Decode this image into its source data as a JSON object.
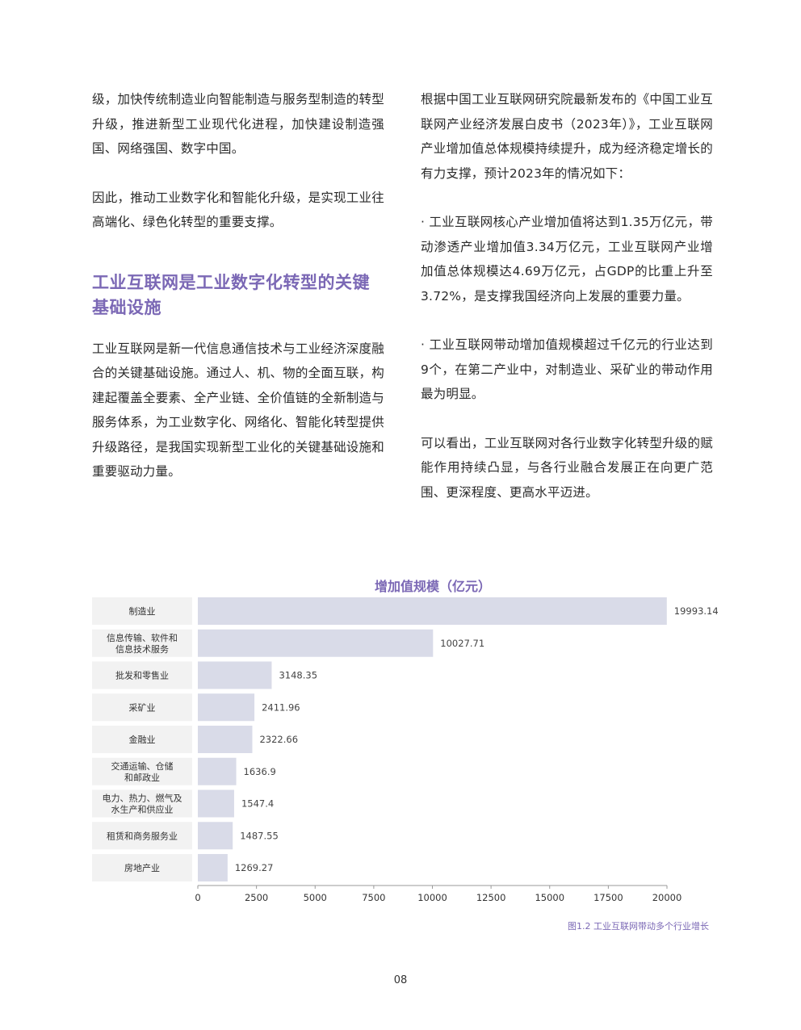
{
  "left_column": {
    "para1": "级，加快传统制造业向智能制造与服务型制造的转型升级，推进新型工业现代化进程，加快建设制造强国、网络强国、数字中国。",
    "para2": "因此，推动工业数字化和智能化升级，是实现工业往高端化、绿色化转型的重要支撑。",
    "heading": "工业互联网是工业数字化转型的关键基础设施",
    "para3": "工业互联网是新一代信息通信技术与工业经济深度融合的关键基础设施。通过人、机、物的全面互联，构建起覆盖全要素、全产业链、全价值链的全新制造与服务体系，为工业数字化、网络化、智能化转型提供升级路径，是我国实现新型工业化的关键基础设施和重要驱动力量。"
  },
  "right_column": {
    "para1": "根据中国工业互联网研究院最新发布的《中国工业互联网产业经济发展白皮书（2023年）》，工业互联网产业增加值总体规模持续提升，成为经济稳定增长的有力支撑，预计2023年的情况如下：",
    "bullet1": "· 工业互联网核心产业增加值将达到1.35万亿元，带动渗透产业增加值3.34万亿元，工业互联网产业增加值总体规模达4.69万亿元，占GDP的比重上升至3.72%，是支撑我国经济向上发展的重要力量。",
    "bullet2": "· 工业互联网带动增加值规模超过千亿元的行业达到9个，在第二产业中，对制造业、采矿业的带动作用最为明显。",
    "para2": "可以看出，工业互联网对各行业数字化转型升级的赋能作用持续凸显，与各行业融合发展正在向更广范围、更深程度、更高水平迈进。"
  },
  "chart_data": {
    "type": "bar",
    "orientation": "horizontal",
    "title": "增加值规模（亿元）",
    "categories": [
      [
        "制造业"
      ],
      [
        "信息传输、软件和",
        "信息技术服务"
      ],
      [
        "批发和零售业"
      ],
      [
        "采矿业"
      ],
      [
        "金融业"
      ],
      [
        "交通运输、仓储",
        "和邮政业"
      ],
      [
        "电力、热力、燃气及",
        "水生产和供应业"
      ],
      [
        "租赁和商务服务业"
      ],
      [
        "房地产业"
      ]
    ],
    "values": [
      19993.14,
      10027.71,
      3148.35,
      2411.96,
      2322.66,
      1636.9,
      1547.4,
      1487.55,
      1269.27
    ],
    "value_labels": [
      "19993.14",
      "10027.71",
      "3148.35",
      "2411.96",
      "2322.66",
      "1636.9",
      "1547.4",
      "1487.55",
      "1269.27"
    ],
    "xlim": [
      0,
      20000
    ],
    "xticks": [
      0,
      2500,
      5000,
      7500,
      10000,
      12500,
      15000,
      17500,
      20000
    ],
    "grid": false,
    "colors": {
      "bar": "#d9dbe8",
      "label_bg": "#f2f2f2",
      "title": "#7b68b5"
    }
  },
  "figure_caption": "图1.2  工业互联网带动多个行业增长",
  "page_number": "08"
}
